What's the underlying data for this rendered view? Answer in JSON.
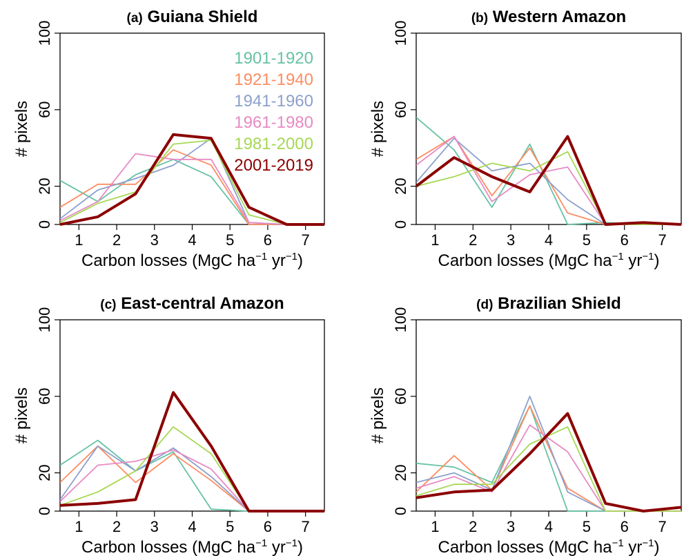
{
  "chart_data": [
    {
      "type": "line",
      "panel_label": "(a)",
      "title": "Guiana Shield",
      "xlabel": "Carbon losses",
      "xlabel_unit": {
        "open": "(MgC ha",
        "exp1": "−1",
        "mid": " yr",
        "exp2": "−1",
        "close": ")"
      },
      "ylabel": "# pixels",
      "x": [
        0.5,
        1.5,
        2.5,
        3.5,
        4.5,
        5.5,
        6.5,
        7.5
      ],
      "xlim": [
        0.5,
        7.5
      ],
      "ylim": [
        0,
        100
      ],
      "xticks": [
        "1",
        "2",
        "3",
        "4",
        "5",
        "6",
        "7"
      ],
      "yticks": [
        "0",
        "20",
        "60",
        "100"
      ],
      "legend_position": "top-right",
      "series": [
        {
          "name": "1901-1920",
          "color": "#66c2a5",
          "values": [
            23,
            12,
            26,
            34,
            25,
            0,
            0,
            0
          ]
        },
        {
          "name": "1921-1940",
          "color": "#fc8d62",
          "values": [
            9,
            21,
            21,
            39,
            31,
            0,
            0,
            0
          ]
        },
        {
          "name": "1941-1960",
          "color": "#8da0cb",
          "values": [
            3,
            18,
            24,
            31,
            45,
            1,
            0,
            0
          ]
        },
        {
          "name": "1961-1980",
          "color": "#e78ac3",
          "values": [
            2,
            12,
            37,
            34,
            34,
            1,
            0,
            0
          ]
        },
        {
          "name": "1981-2000",
          "color": "#a6d854",
          "values": [
            1,
            11,
            17,
            42,
            44,
            5,
            0,
            0
          ]
        },
        {
          "name": "2001-2019",
          "color": "#8b0000",
          "values": [
            0,
            4,
            16,
            47,
            45,
            9,
            0,
            0
          ]
        }
      ]
    },
    {
      "type": "line",
      "panel_label": "(b)",
      "title": "Western Amazon",
      "xlabel": "Carbon losses",
      "xlabel_unit": {
        "open": "(MgC ha",
        "exp1": "−1",
        "mid": " yr",
        "exp2": "−1",
        "close": ")"
      },
      "ylabel": "# pixels",
      "x": [
        0.5,
        1.5,
        2.5,
        3.5,
        4.5,
        5.5,
        6.5,
        7.5
      ],
      "xlim": [
        0.5,
        7.5
      ],
      "ylim": [
        0,
        100
      ],
      "xticks": [
        "1",
        "2",
        "3",
        "4",
        "5",
        "6",
        "7"
      ],
      "yticks": [
        "0",
        "20",
        "60",
        "100"
      ],
      "series": [
        {
          "name": "1901-1920",
          "color": "#66c2a5",
          "values": [
            56,
            39,
            9,
            42,
            0,
            1,
            0,
            0
          ]
        },
        {
          "name": "1921-1940",
          "color": "#fc8d62",
          "values": [
            34,
            46,
            15,
            40,
            6,
            0,
            0,
            0
          ]
        },
        {
          "name": "1941-1960",
          "color": "#8da0cb",
          "values": [
            22,
            45,
            28,
            32,
            13,
            0,
            0,
            0
          ]
        },
        {
          "name": "1961-1980",
          "color": "#e78ac3",
          "values": [
            31,
            46,
            12,
            26,
            30,
            0,
            0,
            0
          ]
        },
        {
          "name": "1981-2000",
          "color": "#a6d854",
          "values": [
            20,
            25,
            32,
            28,
            38,
            0,
            0,
            0
          ]
        },
        {
          "name": "2001-2019",
          "color": "#8b0000",
          "values": [
            20,
            35,
            25,
            17,
            46,
            0,
            1,
            0
          ]
        }
      ]
    },
    {
      "type": "line",
      "panel_label": "(c)",
      "title": "East-central Amazon",
      "xlabel": "Carbon losses",
      "xlabel_unit": {
        "open": "(MgC ha",
        "exp1": "−1",
        "mid": " yr",
        "exp2": "−1",
        "close": ")"
      },
      "ylabel": "# pixels",
      "x": [
        0.5,
        1.5,
        2.5,
        3.5,
        4.5,
        5.5,
        6.5,
        7.5
      ],
      "xlim": [
        0.5,
        7.5
      ],
      "ylim": [
        0,
        100
      ],
      "xticks": [
        "1",
        "2",
        "3",
        "4",
        "5",
        "6",
        "7"
      ],
      "yticks": [
        "0",
        "20",
        "60",
        "100"
      ],
      "series": [
        {
          "name": "1901-1920",
          "color": "#66c2a5",
          "values": [
            24,
            37,
            21,
            31,
            1,
            0,
            0,
            0
          ]
        },
        {
          "name": "1921-1940",
          "color": "#fc8d62",
          "values": [
            15,
            34,
            15,
            30,
            16,
            0,
            0,
            0
          ]
        },
        {
          "name": "1941-1960",
          "color": "#8da0cb",
          "values": [
            6,
            34,
            21,
            33,
            18,
            0,
            0,
            0
          ]
        },
        {
          "name": "1961-1980",
          "color": "#e78ac3",
          "values": [
            5,
            24,
            26,
            32,
            22,
            0,
            0,
            0
          ]
        },
        {
          "name": "1981-2000",
          "color": "#a6d854",
          "values": [
            3,
            10,
            21,
            44,
            30,
            0,
            0,
            0
          ]
        },
        {
          "name": "2001-2019",
          "color": "#8b0000",
          "values": [
            3,
            4,
            6,
            62,
            34,
            0,
            0,
            0
          ]
        }
      ]
    },
    {
      "type": "line",
      "panel_label": "(d)",
      "title": "Brazilian Shield",
      "xlabel": "Carbon losses",
      "xlabel_unit": {
        "open": "(MgC ha",
        "exp1": "−1",
        "mid": " yr",
        "exp2": "−1",
        "close": ")"
      },
      "ylabel": "# pixels",
      "x": [
        0.5,
        1.5,
        2.5,
        3.5,
        4.5,
        5.5,
        6.5,
        7.5
      ],
      "xlim": [
        0.5,
        7.5
      ],
      "ylim": [
        0,
        100
      ],
      "xticks": [
        "1",
        "2",
        "3",
        "4",
        "5",
        "6",
        "7"
      ],
      "yticks": [
        "0",
        "20",
        "60",
        "100"
      ],
      "series": [
        {
          "name": "1901-1920",
          "color": "#66c2a5",
          "values": [
            25,
            23,
            15,
            55,
            0,
            0,
            0,
            0
          ]
        },
        {
          "name": "1921-1940",
          "color": "#fc8d62",
          "values": [
            10,
            29,
            11,
            55,
            12,
            0,
            0,
            0
          ]
        },
        {
          "name": "1941-1960",
          "color": "#8da0cb",
          "values": [
            15,
            20,
            11,
            60,
            10,
            0,
            0,
            0
          ]
        },
        {
          "name": "1961-1980",
          "color": "#e78ac3",
          "values": [
            12,
            18,
            10,
            45,
            31,
            0,
            0,
            0
          ]
        },
        {
          "name": "1981-2000",
          "color": "#a6d854",
          "values": [
            8,
            14,
            14,
            35,
            44,
            0,
            0,
            0
          ]
        },
        {
          "name": "2001-2019",
          "color": "#8b0000",
          "values": [
            7,
            10,
            11,
            30,
            51,
            4,
            0,
            2
          ]
        }
      ]
    }
  ]
}
